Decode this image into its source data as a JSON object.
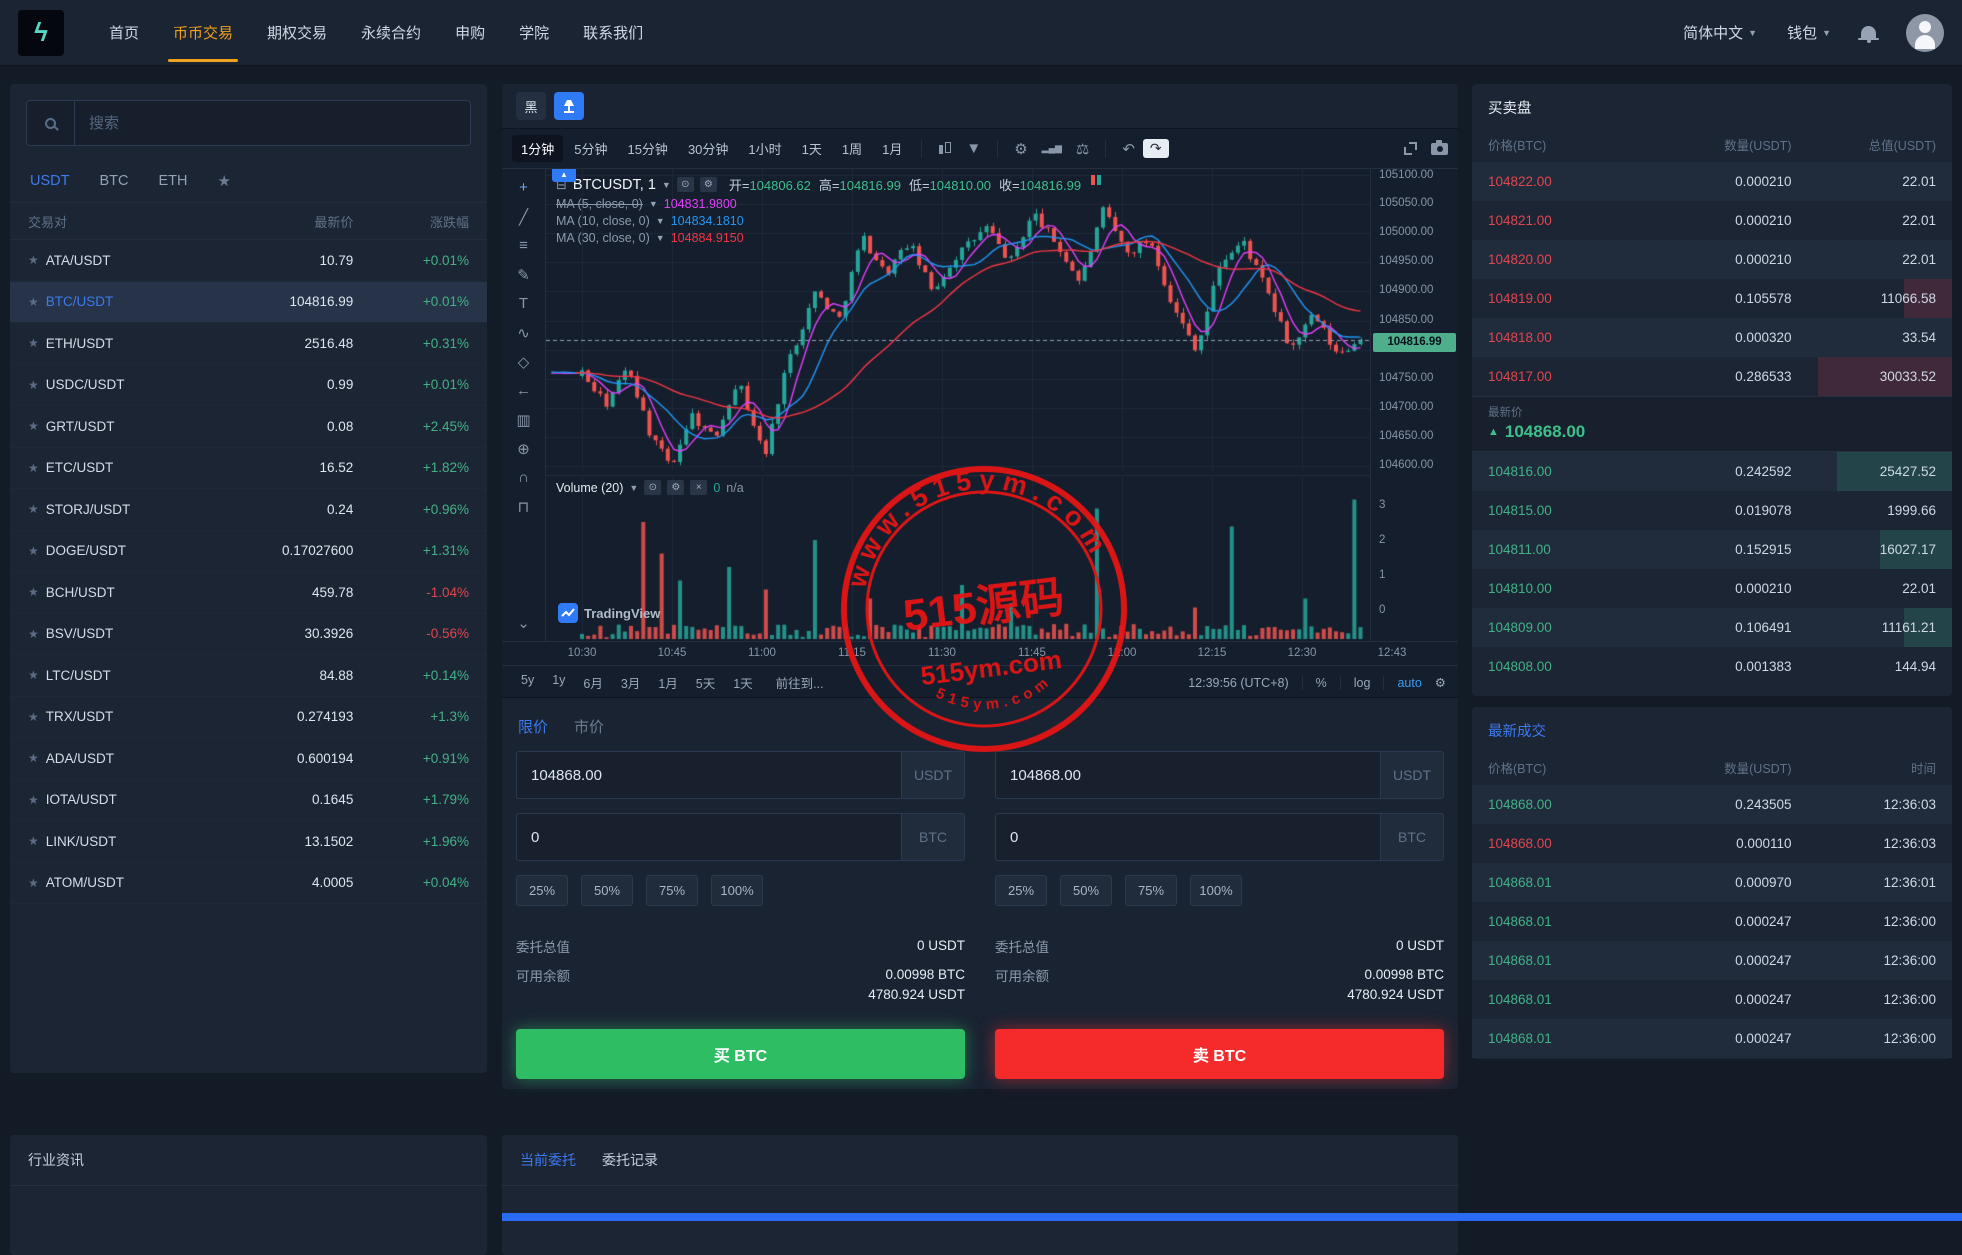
{
  "navbar": {
    "logo_glyph": "ϟ",
    "items": [
      "首页",
      "币币交易",
      "期权交易",
      "永续合约",
      "申购",
      "学院",
      "联系我们"
    ],
    "active_index": 1,
    "language": "简体中文",
    "wallet": "钱包"
  },
  "watchlist": {
    "search_placeholder": "搜索",
    "tabs": [
      "USDT",
      "BTC",
      "ETH",
      "★"
    ],
    "active_tab": 0,
    "columns": {
      "pair": "交易对",
      "price": "最新价",
      "change": "涨跌幅"
    },
    "rows": [
      {
        "pair": "ATA/USDT",
        "price": "10.79",
        "change": "+0.01%",
        "dir": "up",
        "active": false
      },
      {
        "pair": "BTC/USDT",
        "price": "104816.99",
        "change": "+0.01%",
        "dir": "up",
        "active": true
      },
      {
        "pair": "ETH/USDT",
        "price": "2516.48",
        "change": "+0.31%",
        "dir": "up",
        "active": false
      },
      {
        "pair": "USDC/USDT",
        "price": "0.99",
        "change": "+0.01%",
        "dir": "up",
        "active": false
      },
      {
        "pair": "GRT/USDT",
        "price": "0.08",
        "change": "+2.45%",
        "dir": "up",
        "active": false
      },
      {
        "pair": "ETC/USDT",
        "price": "16.52",
        "change": "+1.82%",
        "dir": "up",
        "active": false
      },
      {
        "pair": "STORJ/USDT",
        "price": "0.24",
        "change": "+0.96%",
        "dir": "up",
        "active": false
      },
      {
        "pair": "DOGE/USDT",
        "price": "0.17027600",
        "change": "+1.31%",
        "dir": "up",
        "active": false
      },
      {
        "pair": "BCH/USDT",
        "price": "459.78",
        "change": "-1.04%",
        "dir": "down",
        "active": false
      },
      {
        "pair": "BSV/USDT",
        "price": "30.3926",
        "change": "-0.56%",
        "dir": "down",
        "active": false
      },
      {
        "pair": "LTC/USDT",
        "price": "84.88",
        "change": "+0.14%",
        "dir": "up",
        "active": false
      },
      {
        "pair": "TRX/USDT",
        "price": "0.274193",
        "change": "+1.3%",
        "dir": "up",
        "active": false
      },
      {
        "pair": "ADA/USDT",
        "price": "0.600194",
        "change": "+0.91%",
        "dir": "up",
        "active": false
      },
      {
        "pair": "IOTA/USDT",
        "price": "0.1645",
        "change": "+1.79%",
        "dir": "up",
        "active": false
      },
      {
        "pair": "LINK/USDT",
        "price": "13.1502",
        "change": "+1.96%",
        "dir": "up",
        "active": false
      },
      {
        "pair": "ATOM/USDT",
        "price": "4.0005",
        "change": "+0.04%",
        "dir": "up",
        "active": false
      }
    ]
  },
  "chart": {
    "theme_dark_label": "黑",
    "timeframes": [
      "1分钟",
      "5分钟",
      "15分钟",
      "30分钟",
      "1小时",
      "1天",
      "1周",
      "1月"
    ],
    "active_timeframe": 0,
    "legend": {
      "symbol": "BTCUSDT, 1",
      "open_label": "开",
      "open": "104806.62",
      "high_label": "高",
      "high": "104816.99",
      "low_label": "低",
      "low": "104810.00",
      "close_label": "收",
      "close": "104816.99"
    },
    "ma": [
      {
        "label": "MA (5, close, 0)",
        "value": "104831.9800",
        "color": "#e040fb",
        "struck": true
      },
      {
        "label": "MA (10, close, 0)",
        "value": "104834.1810",
        "color": "#2196f3",
        "struck": false
      },
      {
        "label": "MA (30, close, 0)",
        "value": "104884.9150",
        "color": "#f23645",
        "struck": false
      }
    ],
    "volume_legend": {
      "label": "Volume (20)",
      "value": "0",
      "na": "n/a"
    },
    "price_axis": [
      "105100.00",
      "105050.00",
      "105000.00",
      "104950.00",
      "104900.00",
      "104850.00",
      "104800.00",
      "104750.00",
      "104700.00",
      "104650.00",
      "104600.00"
    ],
    "vol_axis": [
      "3",
      "2",
      "1",
      "0"
    ],
    "price_tag": "104816.99",
    "time_axis": [
      "10:30",
      "10:45",
      "11:00",
      "11:15",
      "11:30",
      "11:45",
      "12:00",
      "12:15",
      "12:30",
      "12:43"
    ],
    "bottom_toolbar": {
      "ranges": [
        "5y",
        "1y",
        "6月",
        "3月",
        "1月",
        "5天",
        "1天"
      ],
      "goto": "前往到...",
      "clock": "12:39:56 (UTC+8)",
      "percent": "%",
      "log": "log",
      "auto": "auto"
    },
    "attribution": "TradingView",
    "tools": [
      {
        "name": "crosshair-tool",
        "glyph": "+"
      },
      {
        "name": "trendline-tool",
        "glyph": "╱"
      },
      {
        "name": "fib-tool",
        "glyph": "≡"
      },
      {
        "name": "brush-tool",
        "glyph": "✎"
      },
      {
        "name": "text-tool",
        "glyph": "T"
      },
      {
        "name": "pattern-tool",
        "glyph": "∿"
      },
      {
        "name": "prediction-tool",
        "glyph": "◇"
      },
      {
        "name": "arrow-tool",
        "glyph": "←"
      },
      {
        "name": "icons-tool",
        "glyph": "▥"
      },
      {
        "name": "zoom-tool",
        "glyph": "⊕"
      },
      {
        "name": "magnet-tool",
        "glyph": "∩"
      },
      {
        "name": "lock-tool",
        "glyph": "⊓"
      },
      {
        "name": "more-tool",
        "glyph": "⌄"
      }
    ],
    "chart_data": {
      "type": "candlestick",
      "symbol": "BTCUSDT",
      "interval_minutes": 1,
      "current": {
        "open": 104806.62,
        "high": 104816.99,
        "low": 104810.0,
        "close": 104816.99
      },
      "y_range": [
        104580,
        105150
      ],
      "candles": 128,
      "anchors": [
        [
          0.0,
          104760
        ],
        [
          0.03,
          104705
        ],
        [
          0.06,
          104770
        ],
        [
          0.09,
          104645
        ],
        [
          0.115,
          104600
        ],
        [
          0.14,
          104690
        ],
        [
          0.17,
          104645
        ],
        [
          0.2,
          104750
        ],
        [
          0.235,
          104615
        ],
        [
          0.26,
          104760
        ],
        [
          0.3,
          104900
        ],
        [
          0.33,
          104850
        ],
        [
          0.36,
          104995
        ],
        [
          0.39,
          104930
        ],
        [
          0.42,
          104985
        ],
        [
          0.45,
          104900
        ],
        [
          0.48,
          104960
        ],
        [
          0.52,
          105010
        ],
        [
          0.55,
          104950
        ],
        [
          0.58,
          105035
        ],
        [
          0.61,
          104980
        ],
        [
          0.64,
          104915
        ],
        [
          0.67,
          105040
        ],
        [
          0.7,
          104965
        ],
        [
          0.73,
          104990
        ],
        [
          0.76,
          104870
        ],
        [
          0.79,
          104800
        ],
        [
          0.82,
          104950
        ],
        [
          0.85,
          104985
        ],
        [
          0.88,
          104900
        ],
        [
          0.91,
          104800
        ],
        [
          0.94,
          104860
        ],
        [
          0.97,
          104790
        ],
        [
          1.0,
          104816.99
        ]
      ],
      "volume_spikes": {
        "10": 2.6,
        "13": 1.9,
        "16": 1.3,
        "24": 1.6,
        "30": 1.1,
        "38": 2.2,
        "47": 0.9,
        "62": 1.2,
        "70": 0.8,
        "84": 2.9,
        "100": 0.7,
        "106": 2.5,
        "118": 0.9,
        "126": 3.1
      },
      "colors": {
        "up": "#26a69a",
        "down": "#ef5350",
        "ma5": "#e040fb",
        "ma10": "#2196f3",
        "ma30": "#f23645",
        "grid": "#1f2a3a",
        "dashed": "#8fa0b4"
      }
    }
  },
  "order_form": {
    "tabs": [
      "限价",
      "市价"
    ],
    "active_tab": 0,
    "percents": [
      "25%",
      "50%",
      "75%",
      "100%"
    ],
    "panels": [
      {
        "side": "buy",
        "price": "104868.00",
        "price_unit": "USDT",
        "amount": "0",
        "amount_unit": "BTC",
        "total_label": "委托总值",
        "total": "0 USDT",
        "balance_label": "可用余额",
        "balance_line1": "0.00998 BTC",
        "balance_line2": "4780.924 USDT",
        "submit": "买 BTC"
      },
      {
        "side": "sell",
        "price": "104868.00",
        "price_unit": "USDT",
        "amount": "0",
        "amount_unit": "BTC",
        "total_label": "委托总值",
        "total": "0 USDT",
        "balance_label": "可用余额",
        "balance_line1": "0.00998 BTC",
        "balance_line2": "4780.924 USDT",
        "submit": "卖 BTC"
      }
    ]
  },
  "orderbook": {
    "title": "买卖盘",
    "columns": {
      "price": "价格(BTC)",
      "amount": "数量(USDT)",
      "total": "总值(USDT)"
    },
    "asks": [
      {
        "price": "104822.00",
        "amount": "0.000210",
        "total": "22.01",
        "depth": 0
      },
      {
        "price": "104821.00",
        "amount": "0.000210",
        "total": "22.01",
        "depth": 0
      },
      {
        "price": "104820.00",
        "amount": "0.000210",
        "total": "22.01",
        "depth": 0
      },
      {
        "price": "104819.00",
        "amount": "0.105578",
        "total": "11066.58",
        "depth": 10
      },
      {
        "price": "104818.00",
        "amount": "0.000320",
        "total": "33.54",
        "depth": 0
      },
      {
        "price": "104817.00",
        "amount": "0.286533",
        "total": "30033.52",
        "depth": 28
      }
    ],
    "latest_label": "最新价",
    "latest_dir": "▲",
    "latest": "104868.00",
    "bids": [
      {
        "price": "104816.00",
        "amount": "0.242592",
        "total": "25427.52",
        "depth": 24
      },
      {
        "price": "104815.00",
        "amount": "0.019078",
        "total": "1999.66",
        "depth": 0
      },
      {
        "price": "104811.00",
        "amount": "0.152915",
        "total": "16027.17",
        "depth": 15
      },
      {
        "price": "104810.00",
        "amount": "0.000210",
        "total": "22.01",
        "depth": 0
      },
      {
        "price": "104809.00",
        "amount": "0.106491",
        "total": "11161.21",
        "depth": 10
      },
      {
        "price": "104808.00",
        "amount": "0.001383",
        "total": "144.94",
        "depth": 0
      }
    ]
  },
  "trades": {
    "title": "最新成交",
    "columns": {
      "price": "价格(BTC)",
      "amount": "数量(USDT)",
      "time": "时间"
    },
    "rows": [
      {
        "price": "104868.00",
        "amount": "0.243505",
        "time": "12:36:03",
        "dir": "up"
      },
      {
        "price": "104868.00",
        "amount": "0.000110",
        "time": "12:36:03",
        "dir": "down"
      },
      {
        "price": "104868.01",
        "amount": "0.000970",
        "time": "12:36:01",
        "dir": "up"
      },
      {
        "price": "104868.01",
        "amount": "0.000247",
        "time": "12:36:00",
        "dir": "up"
      },
      {
        "price": "104868.01",
        "amount": "0.000247",
        "time": "12:36:00",
        "dir": "up"
      },
      {
        "price": "104868.01",
        "amount": "0.000247",
        "time": "12:36:00",
        "dir": "up"
      },
      {
        "price": "104868.01",
        "amount": "0.000247",
        "time": "12:36:00",
        "dir": "up"
      }
    ]
  },
  "bottom": {
    "news_title": "行业资讯",
    "orders_tabs": [
      "当前委托",
      "委托记录"
    ],
    "active_orders_tab": 0
  },
  "watermark": {
    "top_arc": "www.515ym.com",
    "center": "515源码",
    "subtitle": "515ym.com",
    "bottom_arc": "515ym.com",
    "color": "#e81414"
  }
}
